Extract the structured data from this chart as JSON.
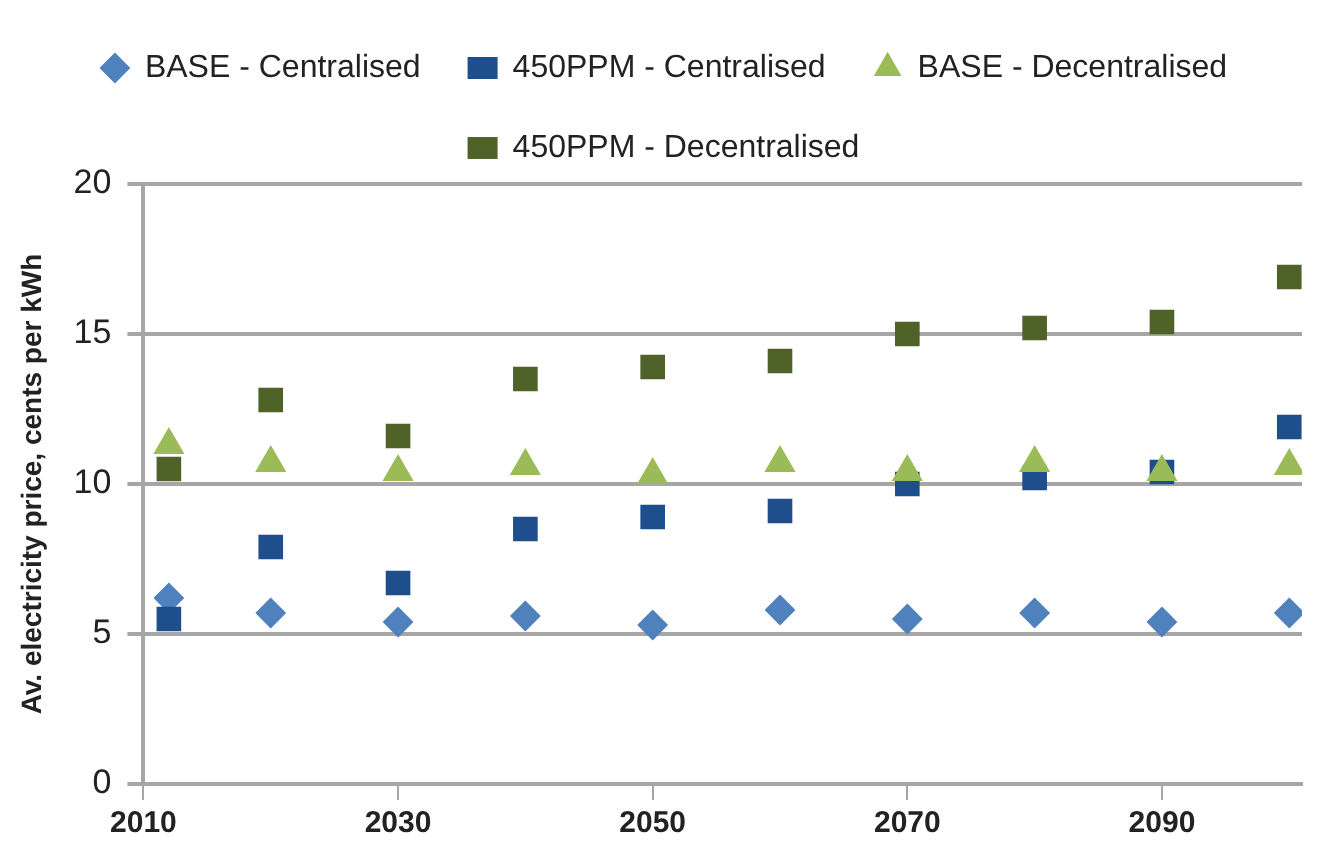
{
  "chart_data": {
    "type": "scatter",
    "ylabel": "Av. electricity price, cents per kWh",
    "x": [
      2012,
      2020,
      2030,
      2040,
      2050,
      2060,
      2070,
      2080,
      2090,
      2100
    ],
    "series": [
      {
        "name": "BASE - Centralised",
        "color": "#4f81bd",
        "marker": "diamond",
        "values": [
          6.2,
          5.7,
          5.4,
          5.6,
          5.3,
          5.8,
          5.5,
          5.7,
          5.4,
          5.7
        ]
      },
      {
        "name": "450PPM - Centralised",
        "color": "#1f4e8c",
        "marker": "square",
        "values": [
          5.5,
          7.9,
          6.7,
          8.5,
          8.9,
          9.1,
          10.0,
          10.2,
          10.4,
          11.9
        ]
      },
      {
        "name": "BASE - Decentralised",
        "color": "#9bbb59",
        "marker": "triangle",
        "values": [
          11.3,
          10.7,
          10.4,
          10.6,
          10.3,
          10.7,
          10.4,
          10.7,
          10.4,
          10.6
        ]
      },
      {
        "name": "450PPM - Decentralised",
        "color": "#4f6228",
        "marker": "square",
        "values": [
          10.5,
          12.8,
          11.6,
          13.5,
          13.9,
          14.1,
          15.0,
          15.2,
          15.4,
          16.9
        ]
      }
    ],
    "xlim": [
      2010,
      2101
    ],
    "xticks": [
      2010,
      2030,
      2050,
      2070,
      2090
    ],
    "ylim": [
      0,
      20
    ],
    "yticks": [
      0,
      5,
      10,
      15,
      20
    ],
    "grid": "y",
    "legend": "top"
  }
}
